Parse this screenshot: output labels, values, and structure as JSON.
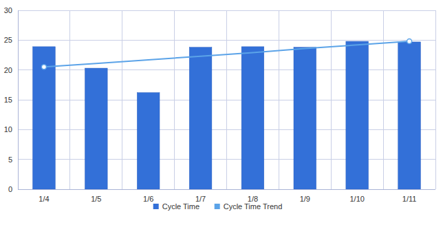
{
  "chart_data": {
    "type": "bar",
    "categories": [
      "1/4",
      "1/5",
      "1/6",
      "1/7",
      "1/8",
      "1/9",
      "1/10",
      "1/11"
    ],
    "series": [
      {
        "name": "Cycle Time",
        "type": "bar",
        "color": "#3370d8",
        "values": [
          23.9,
          20.3,
          16.2,
          23.8,
          23.9,
          23.8,
          24.8,
          24.7
        ]
      },
      {
        "name": "Cycle Time Trend",
        "type": "line",
        "color": "#5ba3e8",
        "marker": "ends",
        "values": [
          20.5,
          21.1,
          21.7,
          22.3,
          22.9,
          23.6,
          24.2,
          24.8
        ]
      }
    ],
    "ylim": [
      0,
      30
    ],
    "yticks": [
      0,
      5,
      10,
      15,
      20,
      25,
      30
    ],
    "grid": true,
    "legend": "bottom"
  }
}
